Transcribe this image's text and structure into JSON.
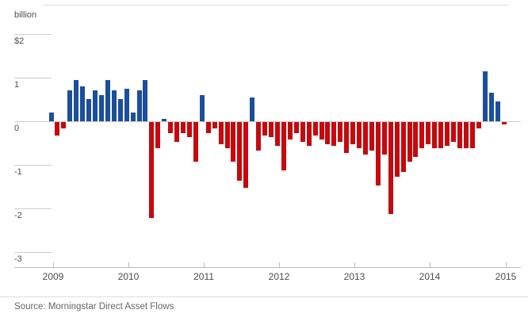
{
  "footer": {
    "source": "Source: Morningstar Direct Asset Flows"
  },
  "chart_data": {
    "type": "bar",
    "title": "",
    "ylabel": "billion",
    "xlabel": "",
    "ylim": [
      -3.4,
      2.7
    ],
    "grid": "short-stub-gridlines-left",
    "legend": "none",
    "y_axis_labels": [
      {
        "label": "$2",
        "value": 2,
        "stub": "short"
      },
      {
        "label": "1",
        "value": 1,
        "stub": "short"
      },
      {
        "label": "0",
        "value": 0,
        "stub": "full"
      },
      {
        "label": "-1",
        "value": -1,
        "stub": "short"
      },
      {
        "label": "-2",
        "value": -2,
        "stub": "short"
      },
      {
        "label": "-3",
        "value": -3,
        "stub": "short"
      }
    ],
    "x_year_labels": [
      "2009",
      "2010",
      "2011",
      "2012",
      "2013",
      "2014",
      "2015"
    ],
    "colors": {
      "positive_bar": "#1c4e9c",
      "negative_bar": "#c5090e",
      "axis": "#cccccc",
      "label_text": "#4d4d4d",
      "source_text": "#666666"
    },
    "months": [
      "2009-01",
      "2009-02",
      "2009-03",
      "2009-04",
      "2009-05",
      "2009-06",
      "2009-07",
      "2009-08",
      "2009-09",
      "2009-10",
      "2009-11",
      "2009-12",
      "2010-01",
      "2010-02",
      "2010-03",
      "2010-04",
      "2010-05",
      "2010-06",
      "2010-07",
      "2010-08",
      "2010-09",
      "2010-10",
      "2010-11",
      "2010-12",
      "2011-01",
      "2011-02",
      "2011-03",
      "2011-04",
      "2011-05",
      "2011-06",
      "2011-07",
      "2011-08",
      "2011-09",
      "2011-10",
      "2011-11",
      "2011-12",
      "2012-01",
      "2012-02",
      "2012-03",
      "2012-04",
      "2012-05",
      "2012-06",
      "2012-07",
      "2012-08",
      "2012-09",
      "2012-10",
      "2012-11",
      "2012-12",
      "2013-01",
      "2013-02",
      "2013-03",
      "2013-04",
      "2013-05",
      "2013-06",
      "2013-07",
      "2013-08",
      "2013-09",
      "2013-10",
      "2013-11",
      "2013-12",
      "2014-01",
      "2014-02",
      "2014-03",
      "2014-04",
      "2014-05",
      "2014-06",
      "2014-07",
      "2014-08",
      "2014-09",
      "2014-10",
      "2014-11",
      "2014-12",
      "2015-01"
    ],
    "values": [
      0.2,
      -0.3,
      -0.15,
      0.7,
      0.95,
      0.8,
      0.5,
      0.7,
      0.6,
      0.95,
      0.7,
      0.5,
      0.75,
      0.2,
      0.7,
      0.95,
      -2.2,
      -0.6,
      0.05,
      -0.25,
      -0.45,
      -0.25,
      -0.35,
      -0.9,
      0.6,
      -0.25,
      -0.15,
      -0.5,
      -0.6,
      -0.9,
      -1.35,
      -1.5,
      0.55,
      -0.65,
      -0.3,
      -0.35,
      -0.55,
      -1.1,
      -0.4,
      -0.25,
      -0.45,
      -0.55,
      -0.3,
      -0.4,
      -0.5,
      -0.55,
      -0.45,
      -0.7,
      -0.5,
      -0.6,
      -0.75,
      -0.65,
      -1.45,
      -0.75,
      -2.1,
      -1.25,
      -1.15,
      -0.9,
      -0.8,
      -0.6,
      -0.5,
      -0.6,
      -0.6,
      -0.55,
      -0.45,
      -0.6,
      -0.6,
      -0.6,
      -0.15,
      1.15,
      0.65,
      0.45,
      -0.05
    ]
  }
}
